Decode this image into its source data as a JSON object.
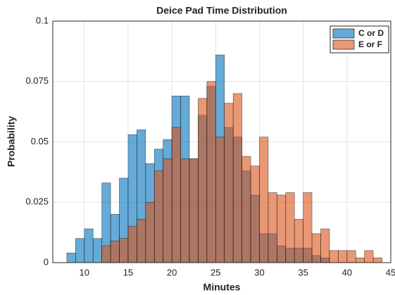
{
  "chart_data": {
    "type": "histogram",
    "title": "Deice Pad Time Distribution",
    "x_label": "Minutes",
    "y_label": "Probability",
    "xlim": [
      6.4,
      45
    ],
    "xticks": [
      10,
      15,
      20,
      25,
      30,
      35,
      40,
      45
    ],
    "ylim": [
      0,
      0.1
    ],
    "yticks": [
      0,
      0.025,
      0.05,
      0.075,
      0.1
    ],
    "grid": true,
    "legend": "northeast",
    "series": [
      {
        "name": "C or D",
        "color": "#0072bd",
        "bins": [
          8,
          9,
          10,
          11,
          12,
          13,
          14,
          15,
          16,
          17,
          18,
          19,
          20,
          21,
          22,
          23,
          24,
          25,
          26,
          27,
          28,
          29,
          30,
          31,
          32,
          33,
          34,
          35,
          36,
          37,
          38
        ],
        "values": [
          0.004,
          0.01,
          0.014,
          0.01,
          0.033,
          0.02,
          0.035,
          0.053,
          0.055,
          0.041,
          0.047,
          0.051,
          0.069,
          0.069,
          0.043,
          0.061,
          0.073,
          0.086,
          0.056,
          0.052,
          0.038,
          0.028,
          0.012,
          0.012,
          0.007,
          0.006,
          0.006,
          0.006,
          0.003,
          0.002
        ]
      },
      {
        "name": "E or F",
        "color": "#d95319",
        "bins": [
          12,
          13,
          14,
          15,
          16,
          17,
          18,
          19,
          20,
          21,
          22,
          23,
          24,
          25,
          26,
          27,
          28,
          29,
          30,
          31,
          32,
          33,
          34,
          35,
          36,
          37,
          38,
          39,
          40,
          41,
          42,
          43,
          44
        ],
        "values": [
          0.007,
          0.009,
          0.01,
          0.015,
          0.018,
          0.025,
          0.038,
          0.043,
          0.056,
          0.043,
          0.043,
          0.068,
          0.075,
          0.052,
          0.066,
          0.07,
          0.044,
          0.04,
          0.052,
          0.029,
          0.028,
          0.029,
          0.018,
          0.029,
          0.012,
          0.014,
          0.005,
          0.005,
          0.005,
          0.002,
          0.005,
          0.002
        ]
      }
    ]
  }
}
